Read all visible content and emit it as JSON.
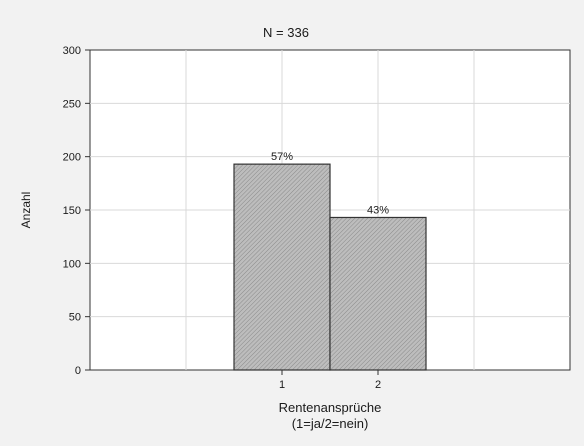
{
  "chart_data": {
    "type": "bar",
    "title": "N = 336",
    "xlabel": "Rentenansprüche",
    "xlabel_sub": "(1=ja/2=nein)",
    "ylabel": "Anzahl",
    "ylim": [
      0,
      300
    ],
    "yticks": [
      "0",
      "50",
      "100",
      "150",
      "200",
      "250",
      "300"
    ],
    "grid": true,
    "categories": [
      "1",
      "2"
    ],
    "values": [
      193,
      143
    ],
    "data_labels": [
      "57%",
      "43%"
    ],
    "colors": {
      "bar_fill": "#bdbdbd",
      "bar_edge": "#333333",
      "plot_bg": "#ffffff",
      "page_bg": "#f2f2f2"
    }
  }
}
